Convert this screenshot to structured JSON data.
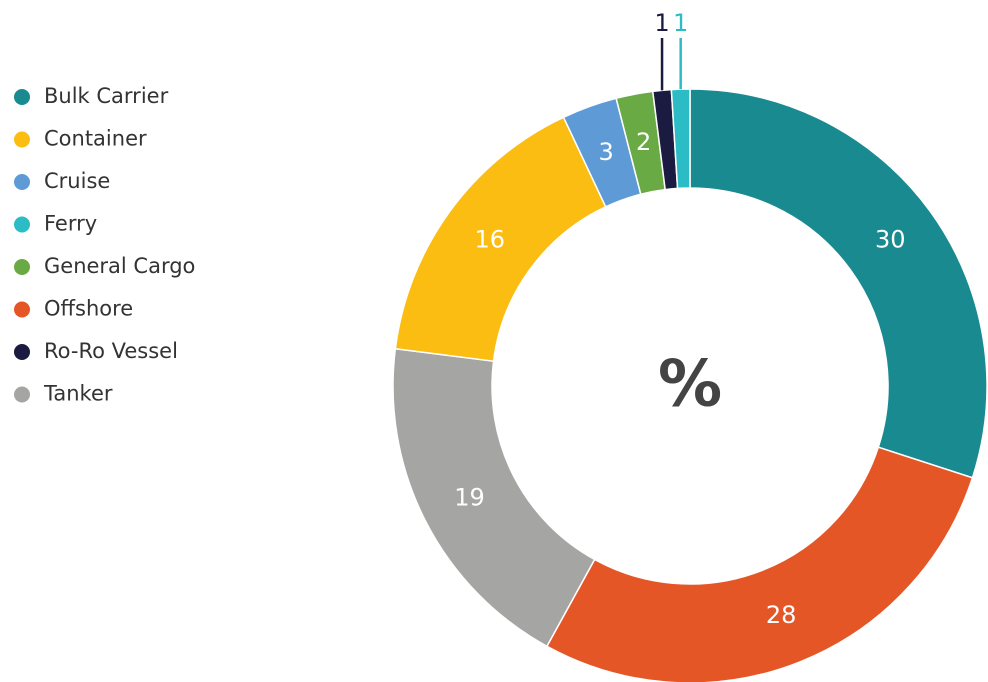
{
  "chart_data": {
    "type": "pie",
    "donut": true,
    "center_label": "%",
    "categories": [
      "Bulk Carrier",
      "Offshore",
      "Tanker",
      "Container",
      "Cruise",
      "General Cargo",
      "Ro-Ro Vessel",
      "Ferry"
    ],
    "values": [
      30,
      28,
      19,
      16,
      3,
      2,
      1,
      1
    ],
    "colors": [
      "#1a8a91",
      "#e55627",
      "#a5a6a4",
      "#fbbd12",
      "#5e9bd6",
      "#6aaa44",
      "#1b1a40",
      "#2bbcc5"
    ],
    "legend": "left"
  }
}
